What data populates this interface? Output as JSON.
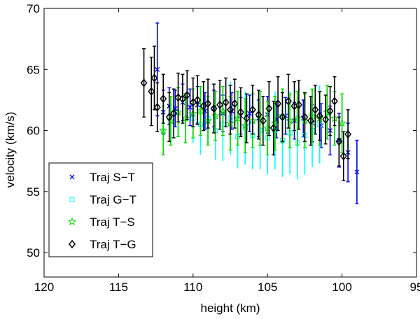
{
  "chart_data": {
    "type": "scatter",
    "xlabel": "height (km)",
    "ylabel": "velocity (km/s)",
    "xlim": [
      120,
      95
    ],
    "ylim": [
      48,
      70
    ],
    "x_reversed": true,
    "xticks": [
      120,
      115,
      110,
      105,
      100,
      95
    ],
    "yticks": [
      50,
      55,
      60,
      65,
      70
    ],
    "grid": false,
    "legend": "bottom-left",
    "error_bars": true,
    "series": [
      {
        "name": "Traj S−T",
        "marker": "x",
        "color": "#0000ff",
        "points": [
          [
            112.4,
            65.0,
            3.8
          ],
          [
            112.0,
            61.5,
            1.8
          ],
          [
            111.6,
            62.0,
            1.5
          ],
          [
            111.2,
            61.8,
            1.5
          ],
          [
            110.7,
            62.3,
            1.5
          ],
          [
            110.2,
            61.9,
            1.5
          ],
          [
            109.7,
            62.1,
            1.5
          ],
          [
            109.2,
            61.6,
            1.5
          ],
          [
            108.6,
            61.8,
            1.5
          ],
          [
            108.0,
            61.4,
            1.5
          ],
          [
            107.4,
            61.6,
            1.5
          ],
          [
            106.8,
            61.2,
            1.5
          ],
          [
            106.2,
            61.4,
            1.5
          ],
          [
            105.6,
            61.0,
            1.5
          ],
          [
            105.0,
            61.3,
            1.5
          ],
          [
            104.4,
            60.9,
            1.5
          ],
          [
            103.8,
            61.2,
            1.5
          ],
          [
            103.2,
            60.8,
            1.5
          ],
          [
            102.6,
            61.0,
            1.5
          ],
          [
            102.0,
            60.6,
            1.5
          ],
          [
            101.4,
            60.4,
            1.8
          ],
          [
            100.8,
            60.0,
            2.0
          ],
          [
            100.2,
            59.2,
            2.2
          ],
          [
            99.6,
            58.2,
            2.4
          ],
          [
            99.0,
            56.6,
            2.6
          ]
        ]
      },
      {
        "name": "Traj G−T",
        "marker": "square",
        "color": "#00ffff",
        "points": [
          [
            110.0,
            61.0,
            2.0
          ],
          [
            109.5,
            60.5,
            2.5
          ],
          [
            109.0,
            61.0,
            2.2
          ],
          [
            108.5,
            60.0,
            2.4
          ],
          [
            108.0,
            60.5,
            3.0
          ],
          [
            107.5,
            61.0,
            3.0
          ],
          [
            107.0,
            59.5,
            2.6
          ],
          [
            106.5,
            60.2,
            3.0
          ],
          [
            106.0,
            59.6,
            2.8
          ],
          [
            105.5,
            60.0,
            3.2
          ],
          [
            105.0,
            59.4,
            3.0
          ],
          [
            104.5,
            60.0,
            3.2
          ],
          [
            104.0,
            59.2,
            3.0
          ],
          [
            103.5,
            59.8,
            3.4
          ],
          [
            103.0,
            59.0,
            3.0
          ],
          [
            102.5,
            59.6,
            3.2
          ],
          [
            102.0,
            60.0,
            3.0
          ],
          [
            101.5,
            60.5,
            3.2
          ]
        ]
      },
      {
        "name": "Traj T−S",
        "marker": "star",
        "color": "#00dd00",
        "points": [
          [
            112.0,
            60.0,
            2.0
          ],
          [
            111.5,
            60.8,
            2.0
          ],
          [
            111.0,
            61.5,
            2.0
          ],
          [
            110.5,
            61.0,
            2.0
          ],
          [
            110.0,
            61.4,
            2.0
          ],
          [
            109.5,
            61.6,
            2.0
          ],
          [
            109.0,
            60.8,
            2.0
          ],
          [
            108.5,
            61.2,
            2.0
          ],
          [
            108.0,
            61.6,
            2.0
          ],
          [
            107.5,
            60.6,
            2.2
          ],
          [
            107.0,
            61.0,
            2.2
          ],
          [
            106.5,
            60.4,
            2.2
          ],
          [
            106.0,
            60.8,
            2.2
          ],
          [
            105.5,
            61.0,
            2.2
          ],
          [
            105.0,
            60.2,
            2.2
          ],
          [
            104.5,
            60.6,
            2.2
          ],
          [
            104.0,
            61.2,
            2.2
          ],
          [
            103.5,
            60.8,
            2.2
          ],
          [
            103.0,
            61.0,
            2.2
          ],
          [
            102.5,
            60.8,
            2.2
          ],
          [
            102.0,
            61.2,
            2.2
          ],
          [
            101.5,
            61.0,
            2.2
          ],
          [
            101.0,
            61.5,
            2.2
          ],
          [
            100.5,
            61.0,
            2.2
          ],
          [
            100.0,
            60.6,
            2.4
          ]
        ]
      },
      {
        "name": "Traj T−G",
        "marker": "diamond",
        "color": "#000000",
        "points": [
          [
            113.3,
            63.9,
            2.8
          ],
          [
            112.8,
            63.2,
            2.8
          ],
          [
            112.6,
            64.3,
            2.6
          ],
          [
            112.4,
            61.9,
            2.0
          ],
          [
            112.0,
            62.6,
            2.0
          ],
          [
            111.6,
            61.1,
            2.0
          ],
          [
            111.3,
            61.4,
            2.0
          ],
          [
            111.0,
            62.7,
            2.0
          ],
          [
            110.7,
            62.6,
            2.0
          ],
          [
            110.4,
            62.9,
            2.0
          ],
          [
            110.0,
            62.3,
            2.0
          ],
          [
            109.7,
            62.5,
            2.0
          ],
          [
            109.3,
            62.0,
            2.0
          ],
          [
            109.0,
            62.2,
            2.0
          ],
          [
            108.6,
            61.8,
            2.0
          ],
          [
            108.2,
            62.1,
            2.0
          ],
          [
            107.8,
            62.3,
            2.0
          ],
          [
            107.5,
            61.7,
            2.0
          ],
          [
            107.2,
            62.2,
            2.0
          ],
          [
            106.8,
            61.5,
            2.0
          ],
          [
            106.4,
            61.0,
            2.0
          ],
          [
            106.0,
            61.7,
            2.0
          ],
          [
            105.6,
            61.3,
            2.0
          ],
          [
            105.3,
            60.8,
            2.0
          ],
          [
            104.9,
            61.8,
            2.2
          ],
          [
            104.6,
            60.2,
            2.2
          ],
          [
            104.3,
            62.2,
            2.2
          ],
          [
            104.0,
            61.1,
            2.0
          ],
          [
            103.6,
            62.4,
            2.2
          ],
          [
            103.2,
            62.0,
            2.0
          ],
          [
            102.9,
            62.1,
            2.0
          ],
          [
            102.5,
            61.1,
            2.0
          ],
          [
            102.1,
            60.8,
            2.0
          ],
          [
            101.8,
            61.7,
            2.0
          ],
          [
            101.5,
            61.2,
            2.0
          ],
          [
            101.1,
            60.9,
            2.0
          ],
          [
            100.8,
            61.6,
            2.0
          ],
          [
            100.5,
            62.4,
            2.0
          ],
          [
            100.2,
            59.1,
            2.0
          ],
          [
            99.9,
            57.9,
            2.0
          ],
          [
            99.6,
            59.7,
            2.0
          ]
        ]
      }
    ]
  }
}
